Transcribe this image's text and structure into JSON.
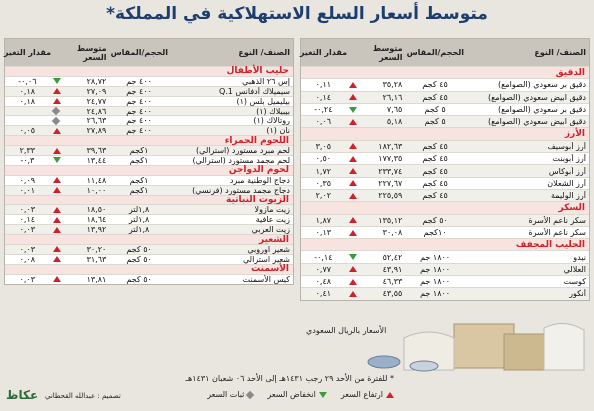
{
  "title": "متوسط أسعار السلع الاستهلاكية في المملكة*",
  "columns": [
    "الصنف/ النوع",
    "الحجم/المقاس",
    "متوسط السعر",
    "مقدار التغير"
  ],
  "right_table": {
    "sections": [
      {
        "name": "الدقيق",
        "rows": [
          {
            "item": "دقيق بر سعودي (الصوامع)",
            "size": "٤٥ كجم",
            "price": "٣٥,٢٨",
            "trend": "up",
            "change": "٠,١١"
          },
          {
            "item": "دقيق ابيض سعودي (الصوامع)",
            "size": "٤٥ كجم",
            "price": "٢٦,١٦",
            "trend": "up",
            "change": "٠,١٤"
          },
          {
            "item": "دقيق بر سعودي (الصوامع)",
            "size": "٥ كجم",
            "price": "٧,٦٥",
            "trend": "down",
            "change": "٠,٢٤-"
          },
          {
            "item": "دقيق ابيض سعودي (الصوامع)",
            "size": "٥ كجم",
            "price": "٥,١٨",
            "trend": "up",
            "change": "٠,٠٦"
          }
        ]
      },
      {
        "name": "الأرز",
        "rows": [
          {
            "item": "أرز أبوسيف",
            "size": "٤٥ كجم",
            "price": "١٨٢,٦٣",
            "trend": "up",
            "change": "٣,٠٥"
          },
          {
            "item": "أرز أبوبنت",
            "size": "٤٥ كجم",
            "price": "١٧٧,٣٥",
            "trend": "up",
            "change": "٠,٥٠"
          },
          {
            "item": "أرز أبوكاس",
            "size": "٤٥ كجم",
            "price": "٢٣٣,٧٤",
            "trend": "up",
            "change": "١,٧٢"
          },
          {
            "item": "أرز الشعلان",
            "size": "٤٥ كجم",
            "price": "٢٢٧,٦٧",
            "trend": "up",
            "change": "٠,٣٥"
          },
          {
            "item": "أرز الوليمة",
            "size": "٤٥ كجم",
            "price": "٢٢٥,٥٩",
            "trend": "up",
            "change": "٢,٠٢"
          }
        ]
      },
      {
        "name": "السكر",
        "rows": [
          {
            "item": "سكر ناعم الأسرة",
            "size": "٥٠ كجم",
            "price": "١٣٥,١٢",
            "trend": "up",
            "change": "١,٨٧"
          },
          {
            "item": "سكر ناعم الأسرة",
            "size": "١٠كجم",
            "price": "٣٠,٠٨",
            "trend": "up",
            "change": "٠,١٣"
          }
        ]
      },
      {
        "name": "الحليب المجفف",
        "rows": [
          {
            "item": "نيدو",
            "size": "١٨٠٠ جم",
            "price": "٥٢,٤٢",
            "trend": "down",
            "change": "٠,١٤-"
          },
          {
            "item": "العلالي",
            "size": "١٨٠٠ جم",
            "price": "٤٣,٩١",
            "trend": "up",
            "change": "٠,٧٧"
          },
          {
            "item": "كوست",
            "size": "١٨٠٠ جم",
            "price": "٤٦,٣٣",
            "trend": "up",
            "change": "٠,٤٨"
          },
          {
            "item": "أنكور",
            "size": "١٨٠٠ جم",
            "price": "٤٣,٥٥",
            "trend": "up",
            "change": "٠,٤١"
          }
        ]
      }
    ]
  },
  "left_table": {
    "sections": [
      {
        "name": "حليب الأطفال",
        "rows": [
          {
            "item": "إس ٢٦ الذهبي",
            "size": "٤٠٠ جم",
            "price": "٢٨,٧٢",
            "trend": "down",
            "change": "٠,٠٦-"
          },
          {
            "item": "سيميلاك أدفانس Q.1",
            "size": "٤٠٠ جم",
            "price": "٢٧,٠٩",
            "trend": "up",
            "change": "٠,١٨"
          },
          {
            "item": "بيليميل بلس (١)",
            "size": "٤٠٠ جم",
            "price": "٢٤,٧٧",
            "trend": "up",
            "change": "٠,١٨"
          },
          {
            "item": "بيبيلاك (١)",
            "size": "٤٠٠ جم",
            "price": "٢٤,٨٦",
            "trend": "steady"
          },
          {
            "item": "روتالاك (١)",
            "size": "٤٠٠ جم",
            "price": "٢٦,٦٣",
            "trend": "steady"
          },
          {
            "item": "نان (١)",
            "size": "٤٠٠ جم",
            "price": "٢٧,٨٩",
            "trend": "up",
            "change": "٠,٠٥"
          }
        ]
      },
      {
        "name": "اللحوم الحمراء",
        "rows": [
          {
            "item": "لحم مبرد مستورد (استرالي)",
            "size": "١كجم",
            "price": "٣٩,٦٣",
            "trend": "up",
            "change": "٢,٣٣"
          },
          {
            "item": "لحم مجمد مستورد (استرالي)",
            "size": "١كجم",
            "price": "١٣,٤٤",
            "trend": "down",
            "change": "٠,٣-"
          }
        ]
      },
      {
        "name": "لحوم الدواجن",
        "rows": [
          {
            "item": "دجاج الوطنية مبرد",
            "size": "١كجم",
            "price": "١١,٤٨",
            "trend": "up",
            "change": "٠,٠٩"
          },
          {
            "item": "دجاج مجمد مستورد (فرنسي)",
            "size": "١كجم",
            "price": "١٠,٠٠",
            "trend": "up",
            "change": "٠,٠١"
          }
        ]
      },
      {
        "name": "الزيوت النباتية",
        "rows": [
          {
            "item": "زيت مازولا",
            "size": "١,٨لتر",
            "price": "١٨,٥٠",
            "trend": "up",
            "change": "٠,٠٣"
          },
          {
            "item": "زيت عافية",
            "size": "١,٨لتر",
            "price": "١٨,٦٤",
            "trend": "up",
            "change": "٠,١٤"
          },
          {
            "item": "زيت العربي",
            "size": "١,٨لتر",
            "price": "١٣,٩٢",
            "trend": "up",
            "change": "٠,٠٣"
          }
        ]
      },
      {
        "name": "الشعير",
        "rows": [
          {
            "item": "شعير اوروبي",
            "size": "٥٠ كجم",
            "price": "٣٠,٢٠",
            "trend": "up",
            "change": "٠,٠٣"
          },
          {
            "item": "شعير استرالي",
            "size": "٥٠ كجم",
            "price": "٣١,٦٣",
            "trend": "up",
            "change": "٠,٠٨"
          }
        ]
      },
      {
        "name": "الأسمنت",
        "rows": [
          {
            "item": "كيس الأسمنت",
            "size": "٥٠ كجم",
            "price": "١٣,٨١",
            "trend": "up",
            "change": "٠,٠٣"
          }
        ]
      }
    ]
  },
  "currency_note": "الأسعار بالريال السعودي",
  "period_note": "* للفترة من الأحد ٢٩ رجب ١٤٣١هـ إلى الأحد ٠٦ شعبان ١٤٣١هـ",
  "legend": [
    {
      "label": "ارتفاع السعر",
      "trend": "up"
    },
    {
      "label": "انخفاض السعر",
      "trend": "down"
    },
    {
      "label": "ثبات السعر",
      "trend": "steady"
    }
  ],
  "credit": "تصميم : عبدالله القحطاني",
  "logo": "عكاظ"
}
